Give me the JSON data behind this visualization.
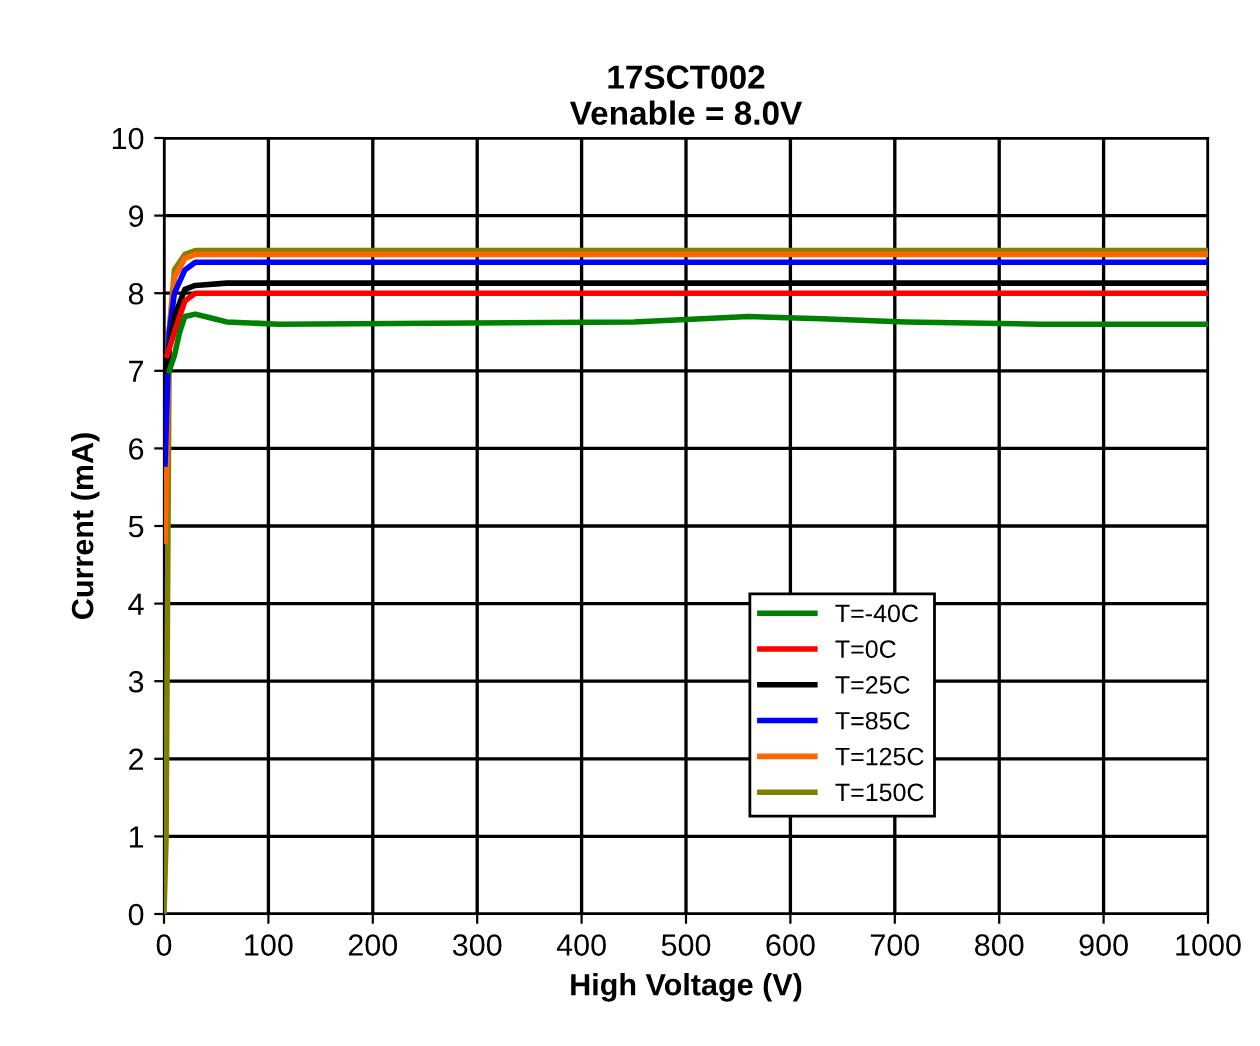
{
  "chart_data": {
    "type": "line",
    "title": "17SCT002",
    "subtitle": "Venable = 8.0V",
    "xlabel": "High Voltage (V)",
    "ylabel": "Current (mA)",
    "xlim": [
      0,
      1000
    ],
    "xticks": [
      0,
      100,
      200,
      300,
      400,
      500,
      600,
      700,
      800,
      900,
      1000
    ],
    "ylim": [
      0,
      10
    ],
    "yticks": [
      0,
      1,
      2,
      3,
      4,
      5,
      6,
      7,
      8,
      9,
      10
    ],
    "grid": true,
    "legend": "bottom right",
    "marker": "none",
    "line_style": "solid",
    "series": [
      {
        "name": "T=-40C",
        "color": "#008000",
        "x": [
          5,
          10,
          15,
          20,
          30,
          45,
          60,
          110,
          450,
          560,
          630,
          710,
          840,
          1000
        ],
        "values": [
          7.0,
          7.2,
          7.5,
          7.7,
          7.73,
          7.68,
          7.63,
          7.6,
          7.63,
          7.7,
          7.67,
          7.63,
          7.6,
          7.6
        ]
      },
      {
        "name": "T=0C",
        "color": "#ff0000",
        "x": [
          3,
          10,
          20,
          30,
          1000
        ],
        "values": [
          7.2,
          7.5,
          7.9,
          8.0,
          8.0
        ]
      },
      {
        "name": "T=25C",
        "color": "#000000",
        "x": [
          3,
          5,
          10,
          20,
          30,
          60,
          1000
        ],
        "values": [
          7.0,
          7.3,
          7.7,
          8.05,
          8.1,
          8.13,
          8.13
        ]
      },
      {
        "name": "T=85C",
        "color": "#0000ff",
        "x": [
          1,
          5,
          10,
          20,
          30,
          1000
        ],
        "values": [
          5.8,
          7.5,
          8.0,
          8.3,
          8.4,
          8.4
        ]
      },
      {
        "name": "T=125C",
        "color": "#ff6600",
        "x": [
          1,
          5,
          10,
          20,
          30,
          1000
        ],
        "values": [
          4.8,
          7.5,
          8.2,
          8.45,
          8.5,
          8.5
        ]
      },
      {
        "name": "T=150C",
        "color": "#808000",
        "x": [
          0,
          2,
          5,
          10,
          20,
          30,
          1000
        ],
        "values": [
          0,
          1,
          7.5,
          8.3,
          8.5,
          8.55,
          8.55
        ]
      }
    ]
  }
}
